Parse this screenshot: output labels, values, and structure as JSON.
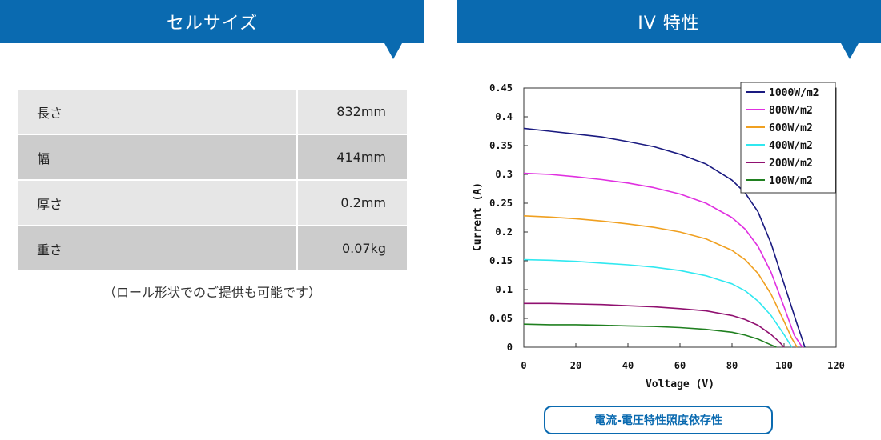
{
  "left_panel": {
    "title": "セルサイズ",
    "rows": [
      {
        "label": "長さ",
        "value": "832mm"
      },
      {
        "label": "幅",
        "value": "414mm"
      },
      {
        "label": "厚さ",
        "value": "0.2mm"
      },
      {
        "label": "重さ",
        "value": "0.07kg"
      }
    ],
    "note": "（ロール形状でのご提供も可能です）"
  },
  "right_panel": {
    "title": "IV 特性",
    "link_label": "電流-電圧特性照度依存性"
  },
  "chart_data": {
    "type": "line",
    "xlabel": "Voltage (V)",
    "ylabel": "Current (A)",
    "xlim": [
      0,
      120
    ],
    "ylim": [
      0,
      0.45
    ],
    "xticks": [
      "0",
      "20",
      "40",
      "60",
      "80",
      "100",
      "120"
    ],
    "yticks": [
      "0",
      "0.05",
      "0.1",
      "0.15",
      "0.2",
      "0.25",
      "0.3",
      "0.35",
      "0.4",
      "0.45"
    ],
    "grid": false,
    "legend_position": "top-right",
    "series": [
      {
        "name": "1000W/m2",
        "color": "#1a1a80",
        "x": [
          0,
          10,
          20,
          30,
          40,
          50,
          60,
          70,
          80,
          85,
          90,
          95,
          100,
          105,
          108
        ],
        "y": [
          0.38,
          0.375,
          0.37,
          0.365,
          0.357,
          0.348,
          0.335,
          0.318,
          0.29,
          0.268,
          0.235,
          0.18,
          0.11,
          0.04,
          0.0
        ]
      },
      {
        "name": "800W/m2",
        "color": "#e030e0",
        "x": [
          0,
          10,
          20,
          30,
          40,
          50,
          60,
          70,
          80,
          85,
          90,
          95,
          100,
          104,
          107
        ],
        "y": [
          0.302,
          0.3,
          0.296,
          0.291,
          0.285,
          0.277,
          0.266,
          0.25,
          0.225,
          0.205,
          0.175,
          0.13,
          0.07,
          0.02,
          0.0
        ]
      },
      {
        "name": "600W/m2",
        "color": "#f0a020",
        "x": [
          0,
          10,
          20,
          30,
          40,
          50,
          60,
          70,
          80,
          85,
          90,
          95,
          100,
          103,
          105
        ],
        "y": [
          0.228,
          0.226,
          0.223,
          0.219,
          0.214,
          0.208,
          0.2,
          0.188,
          0.168,
          0.152,
          0.128,
          0.092,
          0.045,
          0.015,
          0.0
        ]
      },
      {
        "name": "400W/m2",
        "color": "#30e8f0",
        "x": [
          0,
          10,
          20,
          30,
          40,
          50,
          60,
          70,
          80,
          85,
          90,
          95,
          100,
          103
        ],
        "y": [
          0.152,
          0.151,
          0.149,
          0.146,
          0.143,
          0.139,
          0.133,
          0.124,
          0.11,
          0.098,
          0.08,
          0.055,
          0.022,
          0.0
        ]
      },
      {
        "name": "200W/m2",
        "color": "#901070",
        "x": [
          0,
          10,
          20,
          30,
          40,
          50,
          60,
          70,
          80,
          85,
          90,
          95,
          98,
          100
        ],
        "y": [
          0.076,
          0.076,
          0.075,
          0.074,
          0.072,
          0.07,
          0.067,
          0.063,
          0.055,
          0.048,
          0.038,
          0.022,
          0.01,
          0.0
        ]
      },
      {
        "name": "100W/m2",
        "color": "#208020",
        "x": [
          0,
          10,
          20,
          30,
          40,
          50,
          60,
          70,
          80,
          85,
          90,
          94,
          97
        ],
        "y": [
          0.04,
          0.039,
          0.039,
          0.038,
          0.037,
          0.036,
          0.034,
          0.031,
          0.026,
          0.021,
          0.014,
          0.006,
          0.0
        ]
      }
    ]
  }
}
